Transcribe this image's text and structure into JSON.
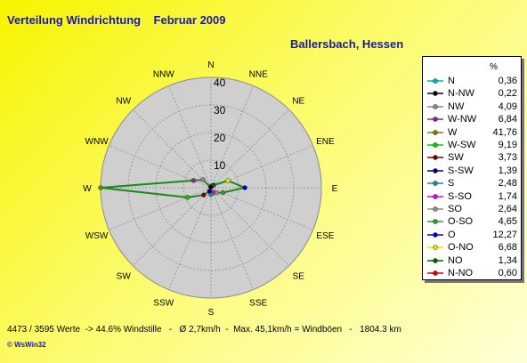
{
  "title": "Verteilung Windrichtung    Februar 2009",
  "subtitle": "Ballersbach, Hessen",
  "chart_data": {
    "type": "radar",
    "directions": [
      "N",
      "NNE",
      "NE",
      "ENE",
      "E",
      "ESE",
      "SE",
      "SSE",
      "S",
      "SSW",
      "SW",
      "WSW",
      "W",
      "WNW",
      "NW",
      "NNW"
    ],
    "radial_ticks": [
      "10",
      "20",
      "30",
      "40"
    ],
    "rmax": 40,
    "series": [
      {
        "values": [
          0.36,
          0.6,
          1.34,
          6.68,
          12.27,
          4.65,
          2.64,
          1.74,
          2.48,
          1.39,
          3.73,
          9.19,
          41.76,
          6.84,
          4.09,
          0.22
        ]
      }
    ],
    "legend": {
      "unit": "%",
      "items": [
        {
          "label": "N",
          "value": "0,36",
          "color": "#00b4b4"
        },
        {
          "label": "N-NW",
          "value": "0,22",
          "color": "#000000"
        },
        {
          "label": "NW",
          "value": "4,09",
          "color": "#8a8a8a"
        },
        {
          "label": "W-NW",
          "value": "6,84",
          "color": "#8a2a8a"
        },
        {
          "label": "W",
          "value": "41,76",
          "color": "#6b8a00"
        },
        {
          "label": "W-SW",
          "value": "9,19",
          "color": "#00cc00"
        },
        {
          "label": "SW",
          "value": "3,73",
          "color": "#7a0000"
        },
        {
          "label": "S-SW",
          "value": "1,39",
          "color": "#000080"
        },
        {
          "label": "S",
          "value": "2,48",
          "color": "#2a8a8a"
        },
        {
          "label": "S-SO",
          "value": "1,74",
          "color": "#dd00dd"
        },
        {
          "label": "SO",
          "value": "2,64",
          "color": "#909090"
        },
        {
          "label": "O-SO",
          "value": "4,65",
          "color": "#2aa02a"
        },
        {
          "label": "O",
          "value": "12,27",
          "color": "#0000cc"
        },
        {
          "label": "O-NO",
          "value": "6,68",
          "color": "#e6e600"
        },
        {
          "label": "NO",
          "value": "1,34",
          "color": "#006600"
        },
        {
          "label": "N-NO",
          "value": "0,60",
          "color": "#dd0000"
        }
      ]
    },
    "line_color": "#1a8a1a",
    "polar_fill": "#cfcfcf"
  },
  "footer": "4473 / 3595 Werte  -> 44.6% Windstille   -   Ø 2,7km/h  -  Max. 45,1km/h = Windböen   -   1804.3 km",
  "brand": "© WsWin32"
}
